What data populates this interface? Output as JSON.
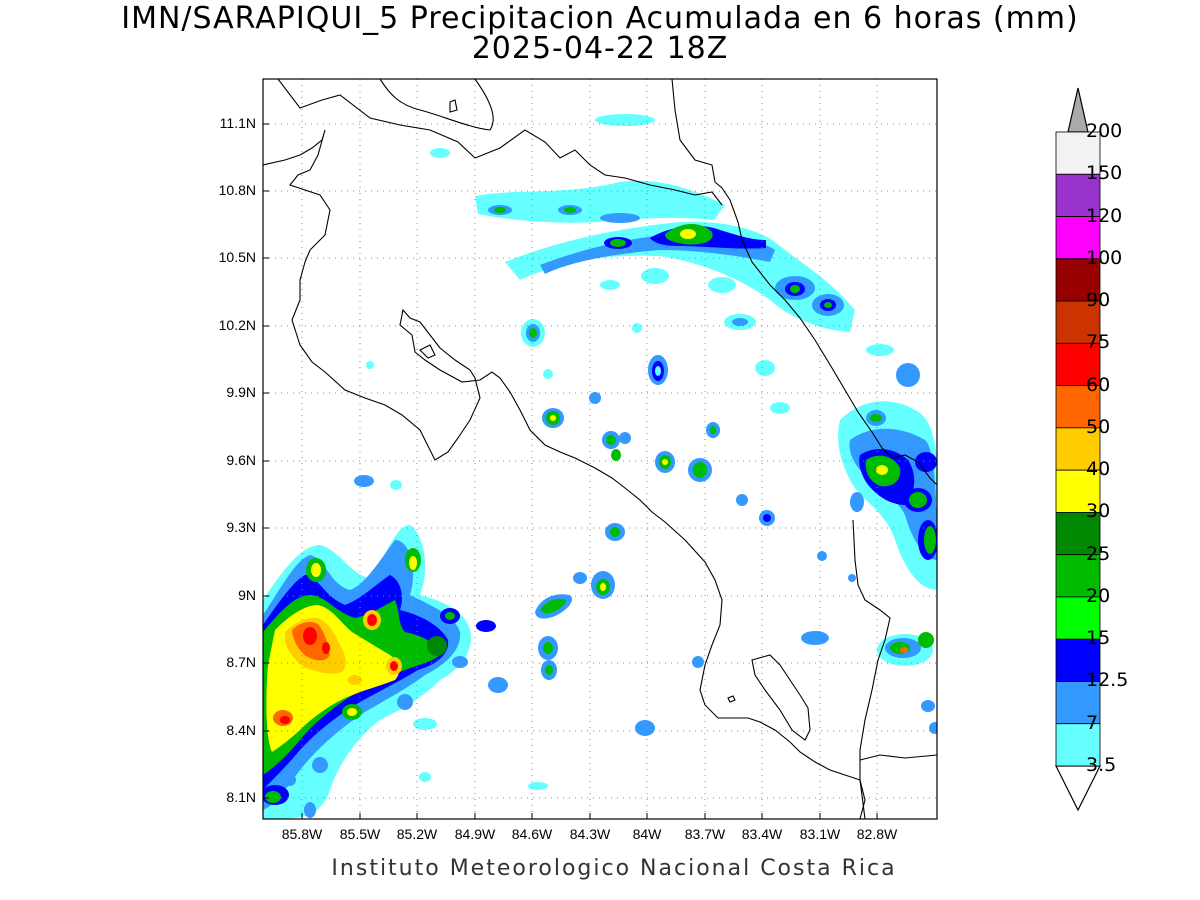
{
  "title": "IMN/SARAPIQUI_5 Precipitacion Acumulada en 6 horas (mm)",
  "subtitle": "2025-04-22 18Z",
  "credit": "Instituto Meteorologico Nacional Costa Rica",
  "map": {
    "lon_range": [
      -86.0,
      -83.0
    ],
    "lat_range": [
      8.0,
      11.3
    ],
    "lat_ticks": [
      "11.1N",
      "10.8N",
      "10.5N",
      "10.2N",
      "9.9N",
      "9.6N",
      "9.3N",
      "9N",
      "8.7N",
      "8.4N",
      "8.1N"
    ],
    "lon_ticks": [
      "85.8W",
      "85.5W",
      "85.2W",
      "84.9W",
      "84.6W",
      "84.3W",
      "84W",
      "83.7W",
      "83.4W",
      "83.1W",
      "82.8W"
    ],
    "grid": true
  },
  "colorbar": {
    "levels": [
      "200",
      "150",
      "120",
      "100",
      "90",
      "75",
      "60",
      "50",
      "40",
      "30",
      "25",
      "20",
      "15",
      "12.5",
      "7",
      "3.5"
    ],
    "colors": [
      "#f2f2f2",
      "#9933cc",
      "#ff00ff",
      "#990000",
      "#cc3300",
      "#ff0000",
      "#ff6600",
      "#ffcc00",
      "#ffff00",
      "#008800",
      "#00bb00",
      "#00ff00",
      "#0000ff",
      "#3399ff",
      "#66ffff"
    ],
    "over_color": "#aaaaaa"
  }
}
